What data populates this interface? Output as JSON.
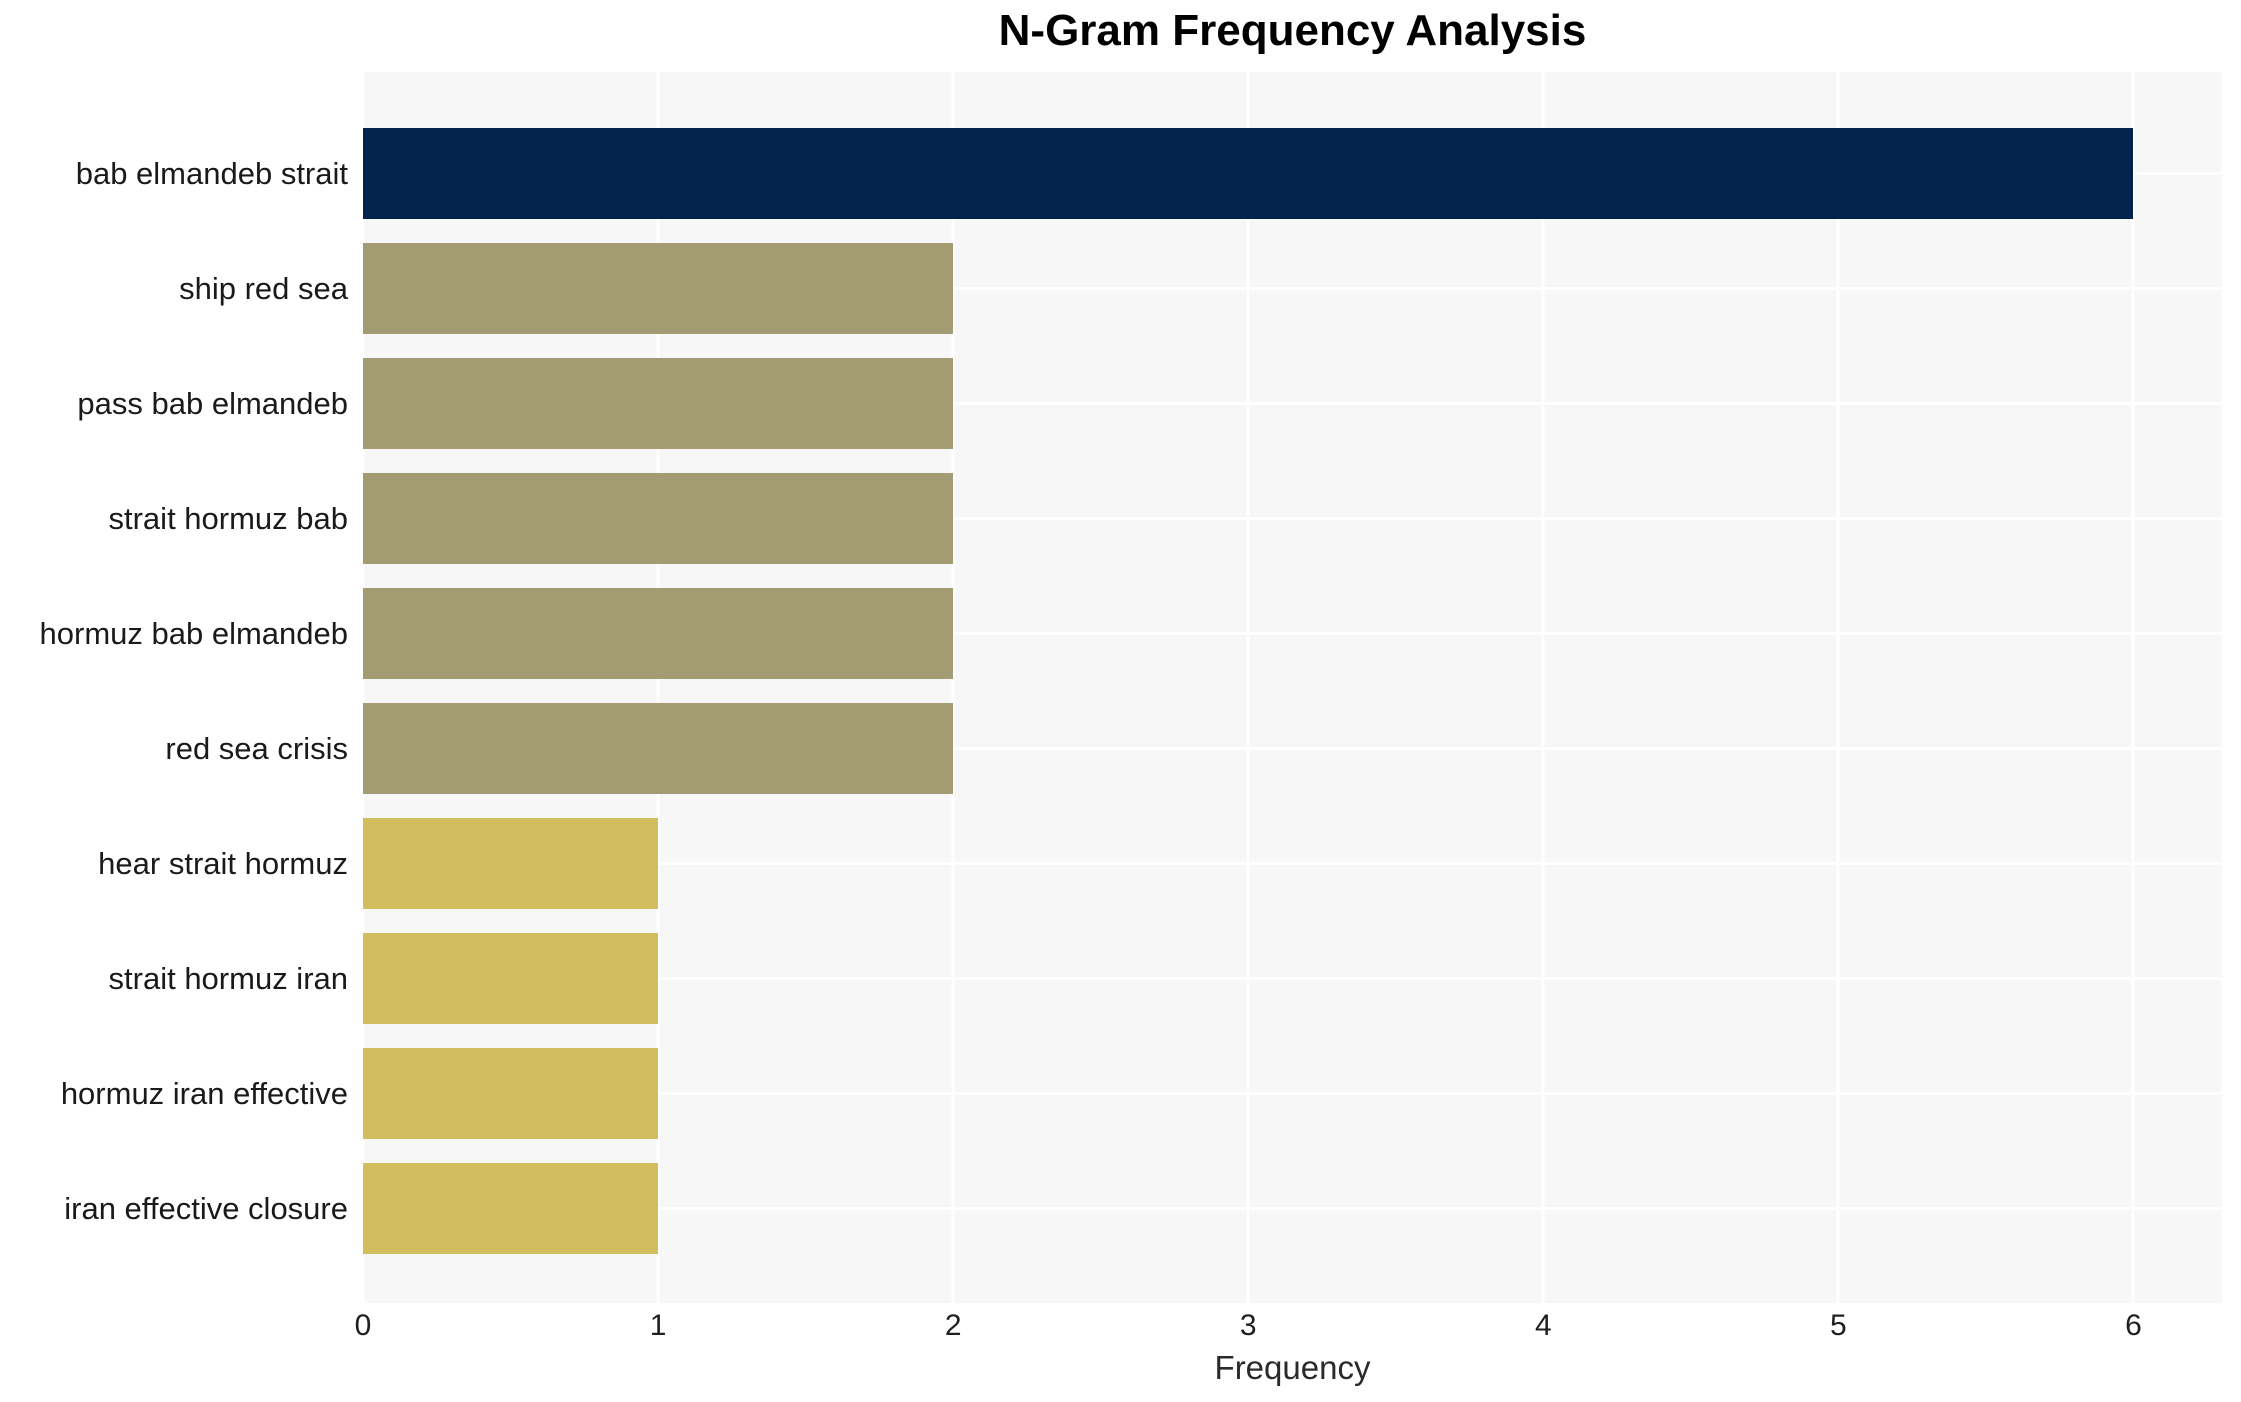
{
  "chart_data": {
    "type": "bar",
    "orientation": "horizontal",
    "title": "N-Gram Frequency Analysis",
    "xlabel": "Frequency",
    "ylabel": "",
    "categories": [
      "bab elmandeb strait",
      "ship red sea",
      "pass bab elmandeb",
      "strait hormuz bab",
      "hormuz bab elmandeb",
      "red sea crisis",
      "hear strait hormuz",
      "strait hormuz iran",
      "hormuz iran effective",
      "iran effective closure"
    ],
    "values": [
      6,
      2,
      2,
      2,
      2,
      2,
      1,
      1,
      1,
      1
    ],
    "bar_colors": [
      "#02234c",
      "#a39b72",
      "#a39b72",
      "#a39b72",
      "#a39b72",
      "#a39b72",
      "#d3be5f",
      "#d3be5f",
      "#d3be5f",
      "#d3be5f"
    ],
    "xticks": [
      0,
      1,
      2,
      3,
      4,
      5,
      6
    ],
    "xlim": [
      0,
      6.3
    ],
    "grid": true,
    "legend": false,
    "plot_background": "#f7f7f7",
    "gridline_color": "#ffffff",
    "title_color": "#000000",
    "label_color": "#1a1a1a"
  }
}
